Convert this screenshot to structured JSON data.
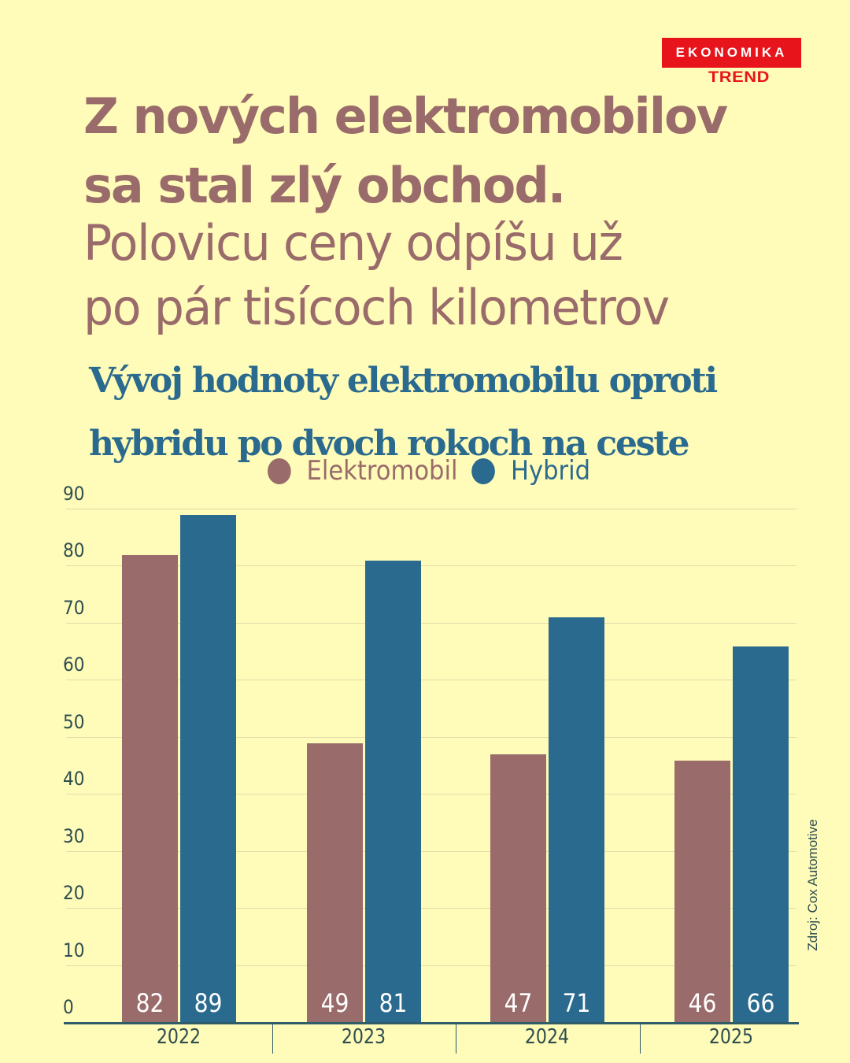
{
  "brand": {
    "logo_box": "EKONOMIKA",
    "logo_sub": "TREND",
    "color": "#e8141b"
  },
  "headline": {
    "bold_line1": "Z nových elektromobilov",
    "bold_line2": "sa stal zlý obchod.",
    "light_line1": "Polovicu ceny odpíšu už",
    "light_line2": "po pár tisícoch kilometrov"
  },
  "colors": {
    "background": "#fffbb8",
    "elektromobil": "#9a6b6b",
    "hybrid": "#2b6a8f",
    "axis": "#2e5c68"
  },
  "legend": [
    {
      "label": "Elektromobil",
      "color": "#9a6b6b"
    },
    {
      "label": "Hybrid",
      "color": "#2b6a8f"
    }
  ],
  "y_ticks": [
    "90",
    "80",
    "70",
    "60",
    "50",
    "40",
    "30",
    "20",
    "10",
    "0"
  ],
  "source": "Zdroj: Cox Automotive",
  "chart_data": {
    "type": "bar",
    "title": "Vývoj hodnoty elektromobilu oproti hybridu po dvoch rokoch na ceste",
    "categories": [
      "2022",
      "2023",
      "2024",
      "2025"
    ],
    "series": [
      {
        "name": "Elektromobil",
        "values": [
          82,
          49,
          47,
          46
        ],
        "color": "#9a6b6b"
      },
      {
        "name": "Hybrid",
        "values": [
          89,
          81,
          71,
          66
        ],
        "color": "#2b6a8f"
      }
    ],
    "xlabel": "",
    "ylabel": "",
    "ylim": [
      0,
      90
    ],
    "yticks": [
      0,
      10,
      20,
      30,
      40,
      50,
      60,
      70,
      80,
      90
    ],
    "grid": true,
    "legend_position": "top",
    "data_labels": "inside-bottom",
    "source": "Zdroj: Cox Automotive"
  }
}
